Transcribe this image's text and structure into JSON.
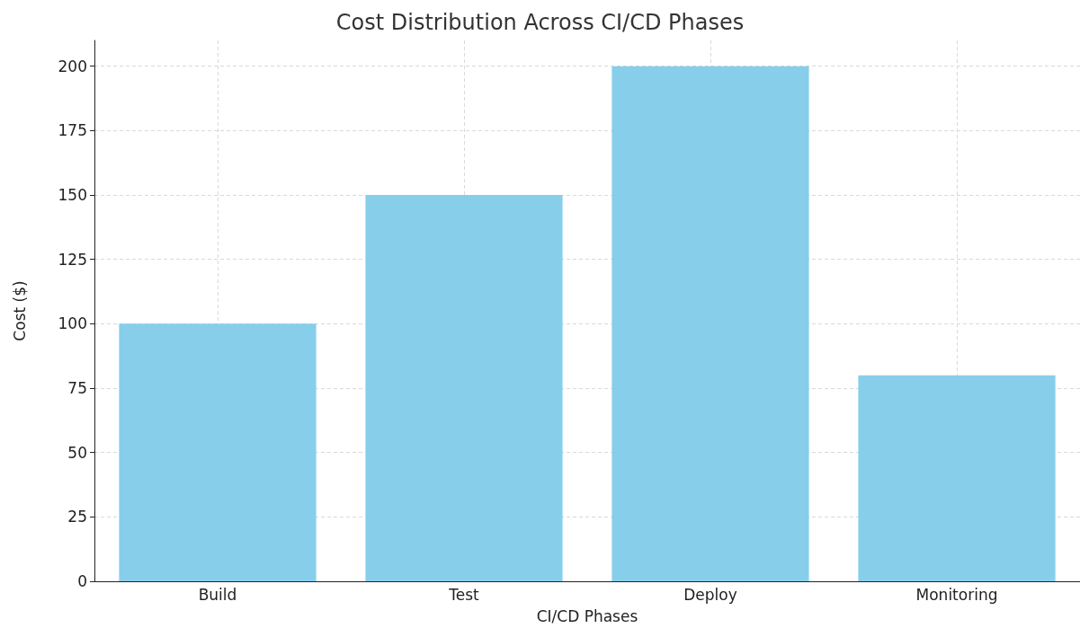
{
  "chart_data": {
    "type": "bar",
    "title": "Cost Distribution Across CI/CD Phases",
    "xlabel": "CI/CD Phases",
    "ylabel": "Cost ($)",
    "categories": [
      "Build",
      "Test",
      "Deploy",
      "Monitoring"
    ],
    "values": [
      100,
      150,
      200,
      80
    ],
    "color": "#87ceeb",
    "ylim": [
      0,
      210
    ],
    "yticks": [
      0,
      25,
      50,
      75,
      100,
      125,
      150,
      175,
      200
    ],
    "grid": true
  }
}
